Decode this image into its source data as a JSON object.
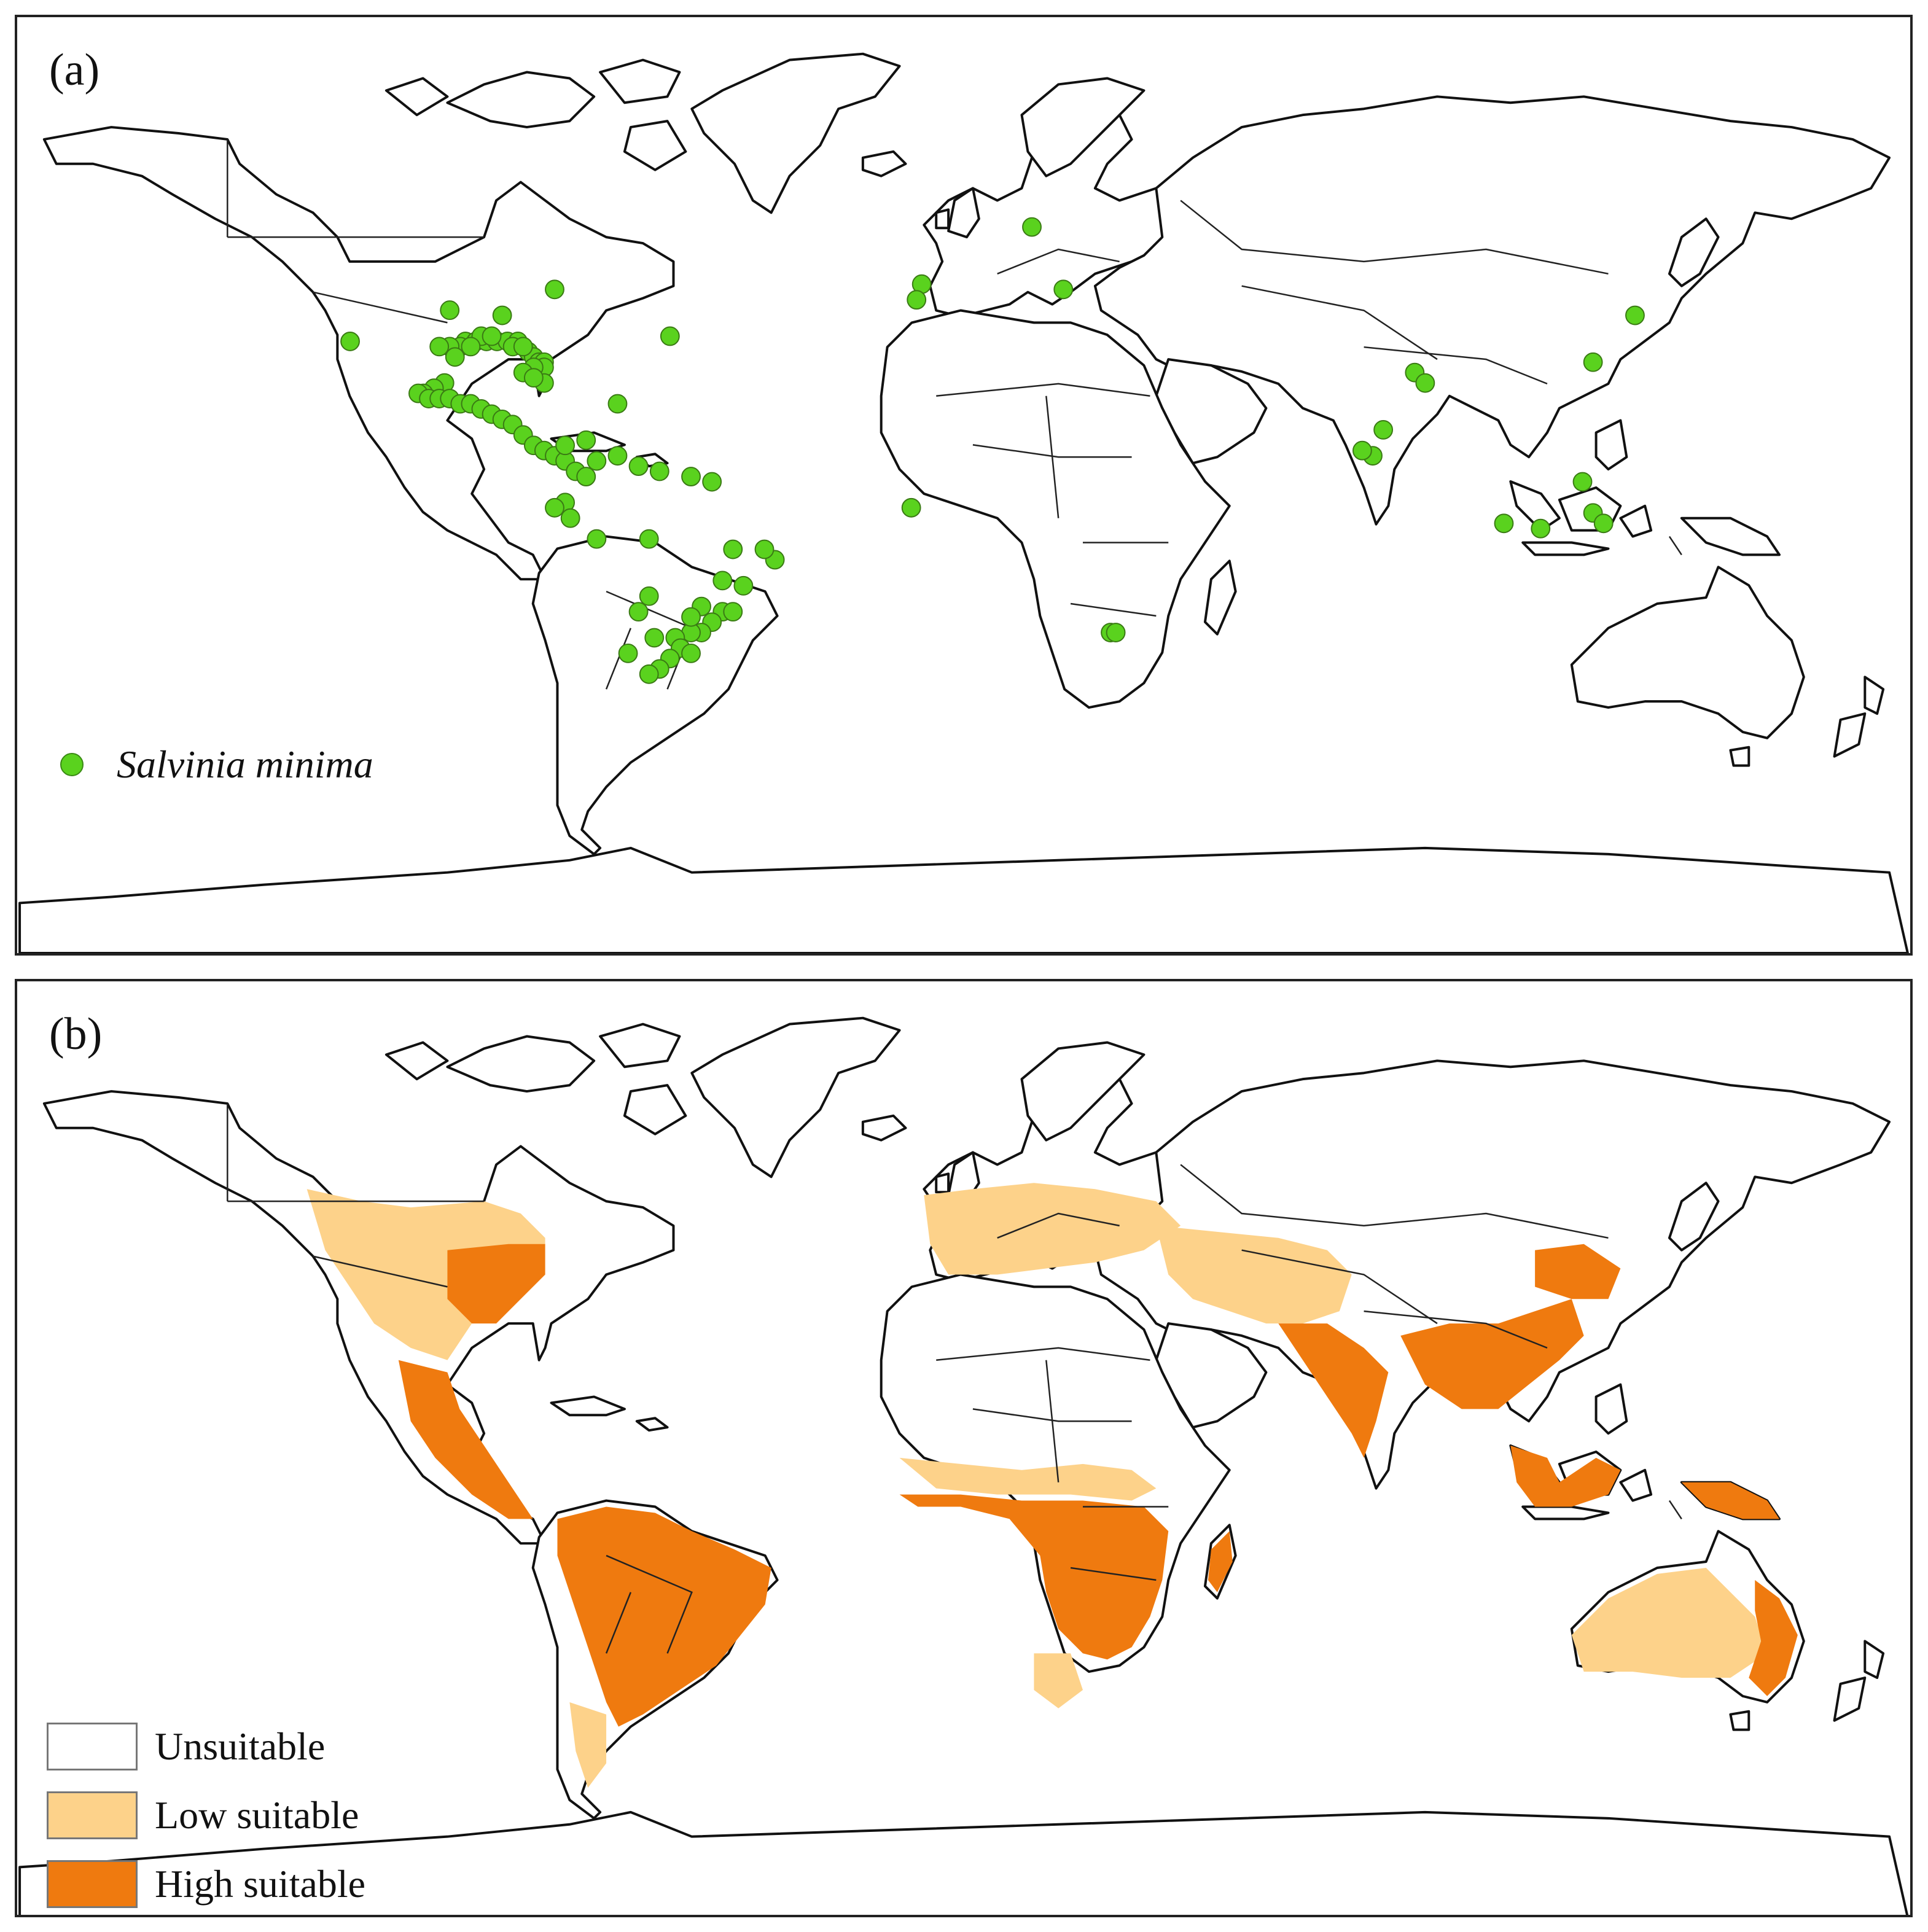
{
  "panel_a": {
    "label": "(a)",
    "legend": {
      "label": "Salvinia minima",
      "color": "#5ad21e"
    },
    "occurrences": [
      [
        -98,
        36
      ],
      [
        -88,
        35
      ],
      [
        -117,
        30
      ],
      [
        -95,
        30
      ],
      [
        -93,
        30
      ],
      [
        -91,
        30
      ],
      [
        -89,
        30
      ],
      [
        -87,
        30
      ],
      [
        -85,
        30
      ],
      [
        -83,
        28
      ],
      [
        -82,
        27
      ],
      [
        -81,
        26
      ],
      [
        -80,
        26
      ],
      [
        -80,
        25
      ],
      [
        -82,
        25
      ],
      [
        -84,
        24
      ],
      [
        -92,
        31
      ],
      [
        -90,
        31
      ],
      [
        -96,
        29
      ],
      [
        -98,
        29
      ],
      [
        -100,
        29
      ],
      [
        -94,
        29
      ],
      [
        -86,
        29
      ],
      [
        -84,
        29
      ],
      [
        -97,
        27
      ],
      [
        -99,
        22
      ],
      [
        -101,
        21
      ],
      [
        -103,
        20
      ],
      [
        -104,
        20
      ],
      [
        -102,
        19
      ],
      [
        -100,
        19
      ],
      [
        -98,
        19
      ],
      [
        -96,
        18
      ],
      [
        -94,
        18
      ],
      [
        -92,
        17
      ],
      [
        -90,
        16
      ],
      [
        -88,
        15
      ],
      [
        -86,
        14
      ],
      [
        -84,
        12
      ],
      [
        -82,
        10
      ],
      [
        -80,
        9
      ],
      [
        -78,
        8
      ],
      [
        -76,
        7
      ],
      [
        -74,
        5
      ],
      [
        -72,
        4
      ],
      [
        -70,
        7
      ],
      [
        -66,
        8
      ],
      [
        -62,
        6
      ],
      [
        -58,
        5
      ],
      [
        -52,
        4
      ],
      [
        -48,
        3
      ],
      [
        -76,
        -1
      ],
      [
        -78,
        -2
      ],
      [
        -75,
        -4
      ],
      [
        -70,
        -8
      ],
      [
        -60,
        -8
      ],
      [
        -44,
        -10
      ],
      [
        -36,
        -12
      ],
      [
        -38,
        -10
      ],
      [
        -42,
        -17
      ],
      [
        -46,
        -16
      ],
      [
        -60,
        -19
      ],
      [
        -50,
        -21
      ],
      [
        -46,
        -22
      ],
      [
        -44,
        -22
      ],
      [
        -48,
        -24
      ],
      [
        -50,
        -26
      ],
      [
        -52,
        -26
      ],
      [
        -55,
        -27
      ],
      [
        -54,
        -29
      ],
      [
        -52,
        -30
      ],
      [
        -56,
        -31
      ],
      [
        -58,
        -33
      ],
      [
        -60,
        -34
      ],
      [
        -59,
        -27
      ],
      [
        -64,
        -30
      ],
      [
        -62,
        -22
      ],
      [
        -52,
        -23
      ],
      [
        -76,
        10
      ],
      [
        -72,
        11
      ],
      [
        -66,
        18
      ],
      [
        -80,
        22
      ],
      [
        -82,
        23
      ],
      [
        -78,
        40
      ],
      [
        -56,
        31
      ],
      [
        13,
        52
      ],
      [
        -8,
        41
      ],
      [
        -9,
        38
      ],
      [
        19,
        40
      ],
      [
        -10,
        -2
      ],
      [
        86,
        24
      ],
      [
        88,
        22
      ],
      [
        80,
        13
      ],
      [
        78,
        8
      ],
      [
        76,
        9
      ],
      [
        120,
        26
      ],
      [
        128,
        35
      ],
      [
        103,
        -5
      ],
      [
        110,
        -6
      ],
      [
        118,
        3
      ],
      [
        120,
        -3
      ],
      [
        122,
        -5
      ],
      [
        28,
        -26
      ],
      [
        29,
        -26
      ]
    ]
  },
  "panel_b": {
    "label": "(b)",
    "legend": [
      {
        "label": "Unsuitable",
        "color": "#ffffff"
      },
      {
        "label": "Low suitable",
        "color": "#fdd28a"
      },
      {
        "label": "High suitable",
        "color": "#ef7a0f"
      }
    ]
  }
}
